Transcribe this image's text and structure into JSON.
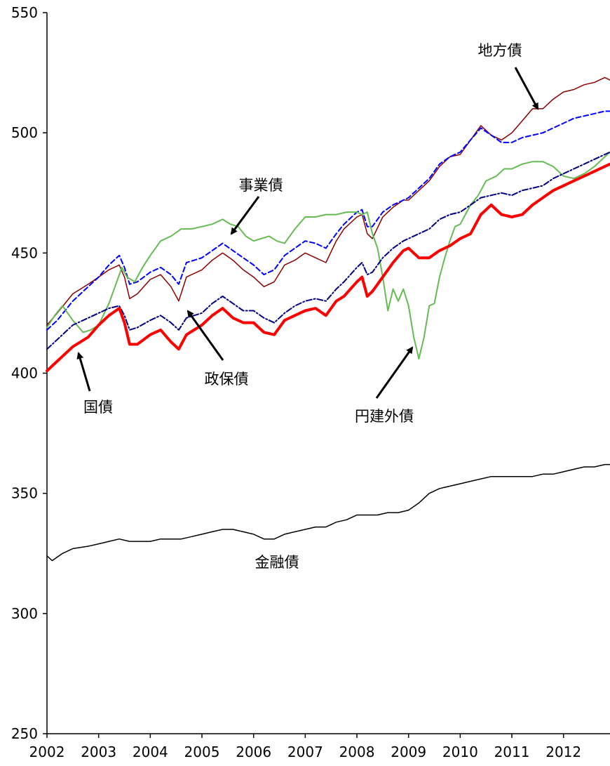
{
  "chart_data": {
    "type": "line",
    "title": "",
    "xlabel": "",
    "ylabel": "",
    "ylim": [
      250,
      550
    ],
    "xlim": [
      2002,
      2012.9
    ],
    "yticks": [
      250,
      300,
      350,
      400,
      450,
      500,
      550
    ],
    "xticks": [
      2002,
      2003,
      2004,
      2005,
      2006,
      2007,
      2008,
      2009,
      2010,
      2011,
      2012
    ],
    "grid": false,
    "legend": "none",
    "colors": {
      "kokusai": "#ff0000",
      "chihousai": "#8b0000",
      "seihosai": "#000080",
      "jigyousai": "#0000ff",
      "enkengaisai": "#66bb55",
      "kinyusai": "#000000"
    },
    "series": [
      {
        "key": "chihousai",
        "name": "地方債",
        "style": "solid",
        "width": 1.5,
        "x": [
          2002,
          2002.2,
          2002.5,
          2002.8,
          2003,
          2003.2,
          2003.4,
          2003.5,
          2003.6,
          2003.75,
          2004,
          2004.2,
          2004.4,
          2004.55,
          2004.7,
          2005,
          2005.2,
          2005.4,
          2005.6,
          2005.8,
          2006,
          2006.2,
          2006.4,
          2006.6,
          2006.8,
          2007,
          2007.2,
          2007.4,
          2007.6,
          2007.75,
          2008,
          2008.1,
          2008.2,
          2008.3,
          2008.5,
          2008.7,
          2008.9,
          2009,
          2009.2,
          2009.4,
          2009.6,
          2009.8,
          2010,
          2010.2,
          2010.4,
          2010.6,
          2010.8,
          2011,
          2011.2,
          2011.4,
          2011.6,
          2011.8,
          2012,
          2012.2,
          2012.4,
          2012.6,
          2012.8,
          2012.9
        ],
        "y": [
          420,
          425,
          433,
          437,
          440,
          443,
          445,
          440,
          431,
          433,
          439,
          441,
          436,
          430,
          440,
          443,
          447,
          450,
          447,
          443,
          440,
          436,
          438,
          445,
          447,
          450,
          448,
          446,
          455,
          460,
          465,
          466,
          458,
          456,
          465,
          469,
          472,
          472,
          476,
          480,
          486,
          490,
          491,
          497,
          503,
          499,
          497,
          500,
          505,
          510,
          510,
          514,
          517,
          518,
          520,
          521,
          523,
          522
        ]
      },
      {
        "key": "jigyousai",
        "name": "事業債",
        "style": "dashed",
        "width": 2,
        "x": [
          2002,
          2002.2,
          2002.5,
          2002.8,
          2003,
          2003.2,
          2003.4,
          2003.5,
          2003.6,
          2003.75,
          2004,
          2004.2,
          2004.4,
          2004.55,
          2004.7,
          2005,
          2005.2,
          2005.4,
          2005.6,
          2005.8,
          2006,
          2006.2,
          2006.4,
          2006.6,
          2006.8,
          2007,
          2007.2,
          2007.4,
          2007.6,
          2007.75,
          2008,
          2008.1,
          2008.2,
          2008.3,
          2008.5,
          2008.7,
          2008.9,
          2009,
          2009.2,
          2009.4,
          2009.6,
          2009.8,
          2010,
          2010.2,
          2010.4,
          2010.6,
          2010.8,
          2011,
          2011.2,
          2011.4,
          2011.6,
          2011.8,
          2012,
          2012.2,
          2012.4,
          2012.6,
          2012.8,
          2012.9
        ],
        "y": [
          418,
          422,
          430,
          436,
          440,
          445,
          449,
          444,
          437,
          438,
          442,
          444,
          441,
          437,
          446,
          448,
          451,
          454,
          451,
          448,
          445,
          441,
          443,
          449,
          452,
          455,
          454,
          452,
          458,
          462,
          467,
          468,
          461,
          461,
          467,
          470,
          472,
          473,
          477,
          481,
          487,
          490,
          492,
          497,
          502,
          499,
          496,
          496,
          498,
          499,
          500,
          502,
          504,
          506,
          507,
          508,
          509,
          509
        ]
      },
      {
        "key": "enkengaisai",
        "name": "円建外債",
        "style": "solid",
        "width": 2,
        "x": [
          2002,
          2002.15,
          2002.3,
          2002.5,
          2002.7,
          2002.85,
          2003,
          2003.2,
          2003.35,
          2003.45,
          2003.55,
          2003.7,
          2003.85,
          2004,
          2004.2,
          2004.4,
          2004.6,
          2004.8,
          2005,
          2005.2,
          2005.4,
          2005.55,
          2005.7,
          2005.85,
          2006,
          2006.15,
          2006.3,
          2006.45,
          2006.6,
          2006.8,
          2007,
          2007.2,
          2007.4,
          2007.6,
          2007.8,
          2008,
          2008.1,
          2008.2,
          2008.3,
          2008.4,
          2008.5,
          2008.6,
          2008.7,
          2008.8,
          2008.9,
          2009,
          2009.1,
          2009.2,
          2009.3,
          2009.4,
          2009.5,
          2009.6,
          2009.7,
          2009.8,
          2009.9,
          2010,
          2010.1,
          2010.2,
          2010.35,
          2010.5,
          2010.7,
          2010.85,
          2011,
          2011.2,
          2011.4,
          2011.6,
          2011.8,
          2011.9,
          2012,
          2012.2,
          2012.4,
          2012.6,
          2012.8,
          2012.9
        ],
        "y": [
          419,
          424,
          428,
          422,
          417,
          418,
          420,
          429,
          438,
          444,
          440,
          438,
          444,
          449,
          455,
          457,
          460,
          460,
          461,
          462,
          464,
          462,
          461,
          457,
          455,
          456,
          457,
          455,
          454,
          460,
          465,
          465,
          466,
          466,
          467,
          467,
          466,
          467,
          458,
          452,
          440,
          426,
          435,
          430,
          435,
          428,
          415,
          406,
          415,
          428,
          429,
          440,
          448,
          455,
          461,
          462,
          466,
          470,
          474,
          480,
          482,
          485,
          485,
          487,
          488,
          488,
          486,
          484,
          482,
          481,
          483,
          486,
          490,
          492
        ]
      },
      {
        "key": "seihosai",
        "name": "政保債",
        "style": "dashdot",
        "width": 2,
        "x": [
          2002,
          2002.2,
          2002.5,
          2002.8,
          2003,
          2003.2,
          2003.4,
          2003.5,
          2003.6,
          2003.75,
          2004,
          2004.2,
          2004.4,
          2004.55,
          2004.7,
          2005,
          2005.2,
          2005.4,
          2005.6,
          2005.8,
          2006,
          2006.2,
          2006.4,
          2006.6,
          2006.8,
          2007,
          2007.2,
          2007.4,
          2007.6,
          2007.75,
          2008,
          2008.1,
          2008.2,
          2008.3,
          2008.5,
          2008.7,
          2008.9,
          2009,
          2009.2,
          2009.4,
          2009.6,
          2009.8,
          2010,
          2010.2,
          2010.4,
          2010.6,
          2010.8,
          2011,
          2011.2,
          2011.4,
          2011.6,
          2011.8,
          2012,
          2012.2,
          2012.4,
          2012.6,
          2012.8,
          2012.9
        ],
        "y": [
          410,
          414,
          420,
          423,
          425,
          427,
          428,
          424,
          418,
          419,
          422,
          424,
          421,
          418,
          423,
          425,
          429,
          432,
          429,
          426,
          426,
          423,
          421,
          425,
          428,
          430,
          431,
          430,
          435,
          438,
          444,
          446,
          441,
          442,
          448,
          452,
          455,
          456,
          458,
          460,
          464,
          466,
          467,
          470,
          473,
          474,
          475,
          474,
          476,
          477,
          478,
          481,
          483,
          485,
          487,
          489,
          491,
          492
        ]
      },
      {
        "key": "kokusai",
        "name": "国債",
        "style": "solid",
        "width": 4,
        "x": [
          2002,
          2002.2,
          2002.5,
          2002.8,
          2003,
          2003.2,
          2003.4,
          2003.5,
          2003.6,
          2003.75,
          2004,
          2004.2,
          2004.4,
          2004.55,
          2004.7,
          2005,
          2005.2,
          2005.4,
          2005.6,
          2005.8,
          2006,
          2006.2,
          2006.4,
          2006.6,
          2006.8,
          2007,
          2007.2,
          2007.4,
          2007.6,
          2007.75,
          2008,
          2008.1,
          2008.2,
          2008.3,
          2008.5,
          2008.7,
          2008.9,
          2009,
          2009.2,
          2009.4,
          2009.6,
          2009.8,
          2010,
          2010.2,
          2010.4,
          2010.6,
          2010.8,
          2011,
          2011.2,
          2011.4,
          2011.6,
          2011.8,
          2012,
          2012.2,
          2012.4,
          2012.6,
          2012.8,
          2012.9
        ],
        "y": [
          401,
          405,
          411,
          415,
          420,
          424,
          427,
          421,
          412,
          412,
          416,
          418,
          413,
          410,
          416,
          420,
          424,
          427,
          423,
          421,
          421,
          417,
          416,
          422,
          424,
          426,
          427,
          424,
          430,
          432,
          438,
          440,
          432,
          434,
          440,
          446,
          451,
          452,
          448,
          448,
          451,
          453,
          456,
          458,
          466,
          470,
          466,
          465,
          466,
          470,
          473,
          476,
          478,
          480,
          482,
          484,
          486,
          487
        ]
      },
      {
        "key": "kinyusai",
        "name": "金融債",
        "style": "solid",
        "width": 1.5,
        "x": [
          2002,
          2002.1,
          2002.3,
          2002.5,
          2002.8,
          2003,
          2003.2,
          2003.4,
          2003.6,
          2003.8,
          2004,
          2004.2,
          2004.4,
          2004.6,
          2004.8,
          2005,
          2005.2,
          2005.4,
          2005.6,
          2005.8,
          2006,
          2006.2,
          2006.4,
          2006.6,
          2006.8,
          2007,
          2007.2,
          2007.4,
          2007.6,
          2007.8,
          2008,
          2008.2,
          2008.4,
          2008.6,
          2008.8,
          2009,
          2009.2,
          2009.4,
          2009.6,
          2009.8,
          2010,
          2010.2,
          2010.4,
          2010.6,
          2010.8,
          2011,
          2011.2,
          2011.4,
          2011.6,
          2011.8,
          2012,
          2012.2,
          2012.4,
          2012.6,
          2012.8,
          2012.9
        ],
        "y": [
          324,
          322,
          325,
          327,
          328,
          329,
          330,
          331,
          330,
          330,
          330,
          331,
          331,
          331,
          332,
          333,
          334,
          335,
          335,
          334,
          333,
          331,
          331,
          333,
          334,
          335,
          336,
          336,
          338,
          339,
          341,
          341,
          341,
          342,
          342,
          343,
          346,
          350,
          352,
          353,
          354,
          355,
          356,
          357,
          357,
          357,
          357,
          357,
          358,
          358,
          359,
          360,
          361,
          361,
          362,
          362
        ]
      }
    ],
    "annotations": [
      {
        "key": "kokusai",
        "text": "国債"
      },
      {
        "key": "seihosai",
        "text": "政保債"
      },
      {
        "key": "jigyousai",
        "text": "事業債"
      },
      {
        "key": "chihousai",
        "text": "地方債"
      },
      {
        "key": "enkengaisai",
        "text": "円建外債"
      },
      {
        "key": "kinyusai",
        "text": "金融債"
      }
    ]
  }
}
